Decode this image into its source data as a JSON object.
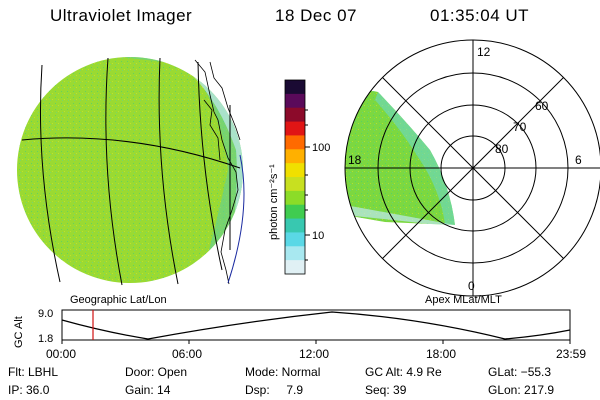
{
  "header": {
    "instrument": "Ultraviolet Imager",
    "date": "18 Dec 07",
    "time": "01:35:04 UT"
  },
  "colorbar": {
    "unit_label": "photon cm⁻²s⁻¹",
    "ticks": [
      "100",
      "10"
    ],
    "colors": [
      "#1a0a33",
      "#5a0a5a",
      "#8c0a2a",
      "#e01515",
      "#ff6a00",
      "#ffb000",
      "#f0e000",
      "#c8e020",
      "#8cdc28",
      "#40cc50",
      "#38c8b0",
      "#5ad8e6",
      "#a8e8f0",
      "#e0f0f4"
    ]
  },
  "left_map": {
    "caption": "Geographic Lat/Lon"
  },
  "polar": {
    "caption": "Apex MLat/MLT",
    "mlt_labels": {
      "top": "12",
      "left": "18",
      "right": "6",
      "bottom": "0"
    },
    "lat_labels": [
      "80",
      "70",
      "60"
    ]
  },
  "altitude_plot": {
    "ylabel": "GC Alt",
    "y_ticks": [
      "9.0",
      "1.8"
    ],
    "x_ticks": [
      "00:00",
      "06:00",
      "12:00",
      "18:00",
      "23:59"
    ],
    "current_marker_color": "#d01010"
  },
  "status": {
    "row1": [
      "Flt: LBHL",
      "Door: Open",
      "Mode: Normal",
      "GC Alt: 4.9 Re",
      "GLat: −55.3"
    ],
    "row2": [
      "IP: 36.0",
      "Gain: 14",
      "Dsp:     7.9",
      "Seq: 39",
      "GLon: 217.9"
    ]
  }
}
